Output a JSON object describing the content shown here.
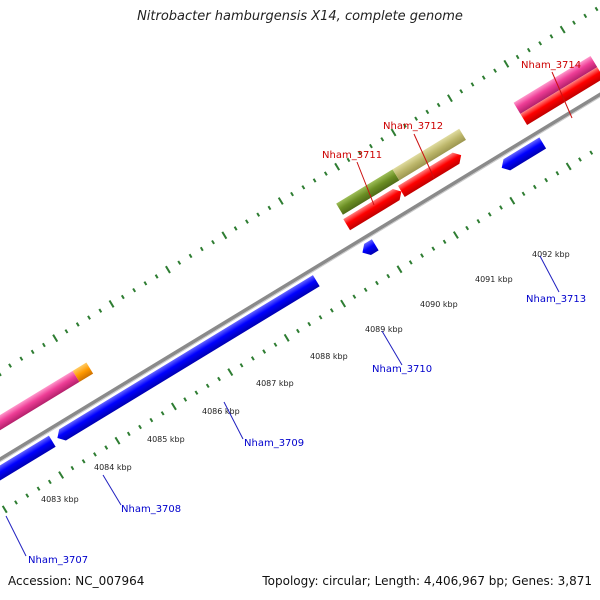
{
  "title": "Nitrobacter hamburgensis X14, complete genome",
  "footer": {
    "accession": "Accession: NC_007964",
    "stats": "Topology: circular; Length: 4,406,967 bp; Genes: 3,871"
  },
  "scale_labels": [
    "4083 kbp",
    "4084 kbp",
    "4085 kbp",
    "4086 kbp",
    "4087 kbp",
    "4088 kbp",
    "4089 kbp",
    "4090 kbp",
    "4091 kbp",
    "4092 kbp"
  ],
  "genes": [
    {
      "locus": "Nham_3707",
      "strand": "reverse",
      "color": "#0000cc"
    },
    {
      "locus": "Nham_3708",
      "strand": "reverse",
      "color": "#0000cc"
    },
    {
      "locus": "Nham_3709",
      "strand": "reverse",
      "color": "#0000cc"
    },
    {
      "locus": "Nham_3710",
      "strand": "reverse",
      "color": "#0000cc"
    },
    {
      "locus": "Nham_3711",
      "strand": "forward",
      "color": "#cc0000"
    },
    {
      "locus": "Nham_3712",
      "strand": "forward",
      "color": "#cc0000"
    },
    {
      "locus": "Nham_3713",
      "strand": "reverse",
      "color": "#0000cc"
    },
    {
      "locus": "Nham_3714",
      "strand": "forward",
      "color": "#cc0000"
    }
  ],
  "colors": {
    "backbone": "#808080",
    "tick": "#2e7d32",
    "forward_label": "#cc0000",
    "reverse_label": "#0000cc",
    "cds_forward": "#ff0000",
    "cds_reverse": "#0000ff",
    "feature_magenta": "#e8388f",
    "feature_orange": "#ff9900",
    "feature_olive": "#6b8e23",
    "feature_khaki": "#bdb76b"
  }
}
